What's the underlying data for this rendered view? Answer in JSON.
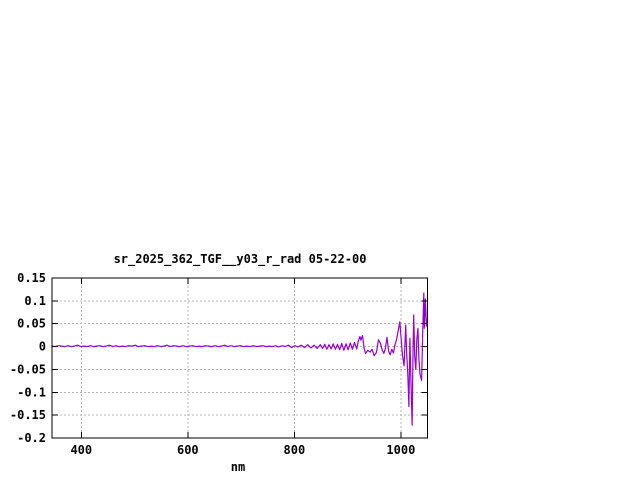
{
  "page": {
    "background": "#ffffff"
  },
  "chart_data": {
    "type": "line",
    "title": "sr_2025_362_TGF__y03_r_rad 05-22-00",
    "xlabel": "nm",
    "ylabel": "",
    "xlim": [
      345,
      1050
    ],
    "ylim": [
      -0.2,
      0.15
    ],
    "x_ticks": [
      400,
      600,
      800,
      1000
    ],
    "x_tick_labels": [
      "400",
      "600",
      "800",
      "1000"
    ],
    "y_ticks": [
      0.15,
      0.1,
      0.05,
      0,
      -0.05,
      -0.1,
      -0.15,
      -0.2
    ],
    "y_tick_labels": [
      "0.15",
      "0.1",
      "0.05",
      "0",
      "-0.05",
      "-0.1",
      "-0.15",
      "-0.2"
    ],
    "grid": true,
    "legend": "none",
    "line_color": "#9400d3",
    "grid_color": "#b4b4b4",
    "frame_color": "#000000",
    "series": [
      {
        "name": "sr_2025_362_TGF__y03_r_rad",
        "points": [
          [
            345,
            0.001
          ],
          [
            351,
            0.0
          ],
          [
            357,
            0.002
          ],
          [
            363,
            0.001
          ],
          [
            369,
            0.0
          ],
          [
            375,
            0.002
          ],
          [
            381,
            0.0
          ],
          [
            387,
            0.001
          ],
          [
            393,
            0.003
          ],
          [
            399,
            0.0
          ],
          [
            405,
            0.001
          ],
          [
            411,
            0.0
          ],
          [
            417,
            0.002
          ],
          [
            423,
            0.0
          ],
          [
            429,
            0.001
          ],
          [
            435,
            0.002
          ],
          [
            441,
            0.0
          ],
          [
            447,
            0.001
          ],
          [
            453,
            0.003
          ],
          [
            459,
            0.0
          ],
          [
            465,
            0.002
          ],
          [
            471,
            0.0
          ],
          [
            477,
            0.001
          ],
          [
            483,
            0.0
          ],
          [
            489,
            0.002
          ],
          [
            495,
            0.001
          ],
          [
            501,
            0.003
          ],
          [
            507,
            0.0
          ],
          [
            513,
            0.001
          ],
          [
            519,
            0.002
          ],
          [
            525,
            0.0
          ],
          [
            531,
            0.001
          ],
          [
            537,
            0.0
          ],
          [
            543,
            0.002
          ],
          [
            549,
            0.0
          ],
          [
            555,
            0.001
          ],
          [
            561,
            0.003
          ],
          [
            567,
            0.0
          ],
          [
            573,
            0.002
          ],
          [
            579,
            0.001
          ],
          [
            585,
            0.0
          ],
          [
            591,
            0.002
          ],
          [
            597,
            0.0
          ],
          [
            603,
            0.001
          ],
          [
            609,
            0.002
          ],
          [
            615,
            0.0
          ],
          [
            621,
            0.001
          ],
          [
            627,
            0.0
          ],
          [
            633,
            0.002
          ],
          [
            639,
            0.001
          ],
          [
            645,
            0.0
          ],
          [
            651,
            0.002
          ],
          [
            657,
            0.0
          ],
          [
            663,
            0.001
          ],
          [
            669,
            0.003
          ],
          [
            675,
            0.0
          ],
          [
            681,
            0.002
          ],
          [
            687,
            0.0
          ],
          [
            693,
            0.001
          ],
          [
            699,
            0.002
          ],
          [
            705,
            0.0
          ],
          [
            711,
            0.001
          ],
          [
            717,
            0.0
          ],
          [
            723,
            0.002
          ],
          [
            729,
            0.0
          ],
          [
            735,
            0.001
          ],
          [
            741,
            0.002
          ],
          [
            747,
            0.0
          ],
          [
            753,
            0.001
          ],
          [
            759,
            0.0
          ],
          [
            765,
            0.002
          ],
          [
            771,
            -0.001
          ],
          [
            777,
            0.002
          ],
          [
            783,
            0.0
          ],
          [
            789,
            0.003
          ],
          [
            795,
            -0.002
          ],
          [
            801,
            0.002
          ],
          [
            807,
            -0.001
          ],
          [
            813,
            0.003
          ],
          [
            819,
            -0.002
          ],
          [
            825,
            0.004
          ],
          [
            831,
            -0.003
          ],
          [
            837,
            0.003
          ],
          [
            843,
            -0.004
          ],
          [
            849,
            0.004
          ],
          [
            853,
            -0.004
          ],
          [
            857,
            0.005
          ],
          [
            861,
            -0.006
          ],
          [
            865,
            0.004
          ],
          [
            869,
            -0.005
          ],
          [
            873,
            0.006
          ],
          [
            877,
            -0.006
          ],
          [
            881,
            0.005
          ],
          [
            885,
            -0.007
          ],
          [
            889,
            0.007
          ],
          [
            893,
            -0.008
          ],
          [
            897,
            0.006
          ],
          [
            901,
            -0.007
          ],
          [
            905,
            0.008
          ],
          [
            909,
            -0.006
          ],
          [
            913,
            0.009
          ],
          [
            917,
            -0.005
          ],
          [
            920,
            0.012
          ],
          [
            923,
            0.022
          ],
          [
            925,
            0.014
          ],
          [
            928,
            0.024
          ],
          [
            931,
            -0.004
          ],
          [
            934,
            -0.015
          ],
          [
            938,
            -0.008
          ],
          [
            942,
            -0.012
          ],
          [
            946,
            -0.006
          ],
          [
            950,
            -0.02
          ],
          [
            954,
            -0.013
          ],
          [
            958,
            0.015
          ],
          [
            962,
            0.006
          ],
          [
            965,
            -0.008
          ],
          [
            968,
            -0.015
          ],
          [
            971,
            -0.004
          ],
          [
            974,
            0.02
          ],
          [
            977,
            -0.01
          ],
          [
            980,
            -0.018
          ],
          [
            983,
            -0.006
          ],
          [
            986,
            -0.014
          ],
          [
            989,
            0.004
          ],
          [
            992,
            0.016
          ],
          [
            995,
            0.035
          ],
          [
            998,
            0.054
          ],
          [
            1001,
            0.01
          ],
          [
            1003,
            -0.02
          ],
          [
            1006,
            -0.042
          ],
          [
            1009,
            0.047
          ],
          [
            1011,
            -0.016
          ],
          [
            1013,
            -0.06
          ],
          [
            1015,
            -0.131
          ],
          [
            1017,
            0.018
          ],
          [
            1019,
            -0.08
          ],
          [
            1021,
            -0.172
          ],
          [
            1023,
            0.0
          ],
          [
            1024,
            0.069
          ],
          [
            1026,
            -0.02
          ],
          [
            1028,
            -0.05
          ],
          [
            1030,
            0.015
          ],
          [
            1032,
            0.04
          ],
          [
            1034,
            -0.03
          ],
          [
            1036,
            -0.06
          ],
          [
            1039,
            -0.074
          ],
          [
            1041,
            0.03
          ],
          [
            1043,
            0.117
          ],
          [
            1044,
            0.04
          ],
          [
            1046,
            0.104
          ],
          [
            1048,
            0.045
          ],
          [
            1050,
            0.06
          ]
        ]
      }
    ]
  }
}
